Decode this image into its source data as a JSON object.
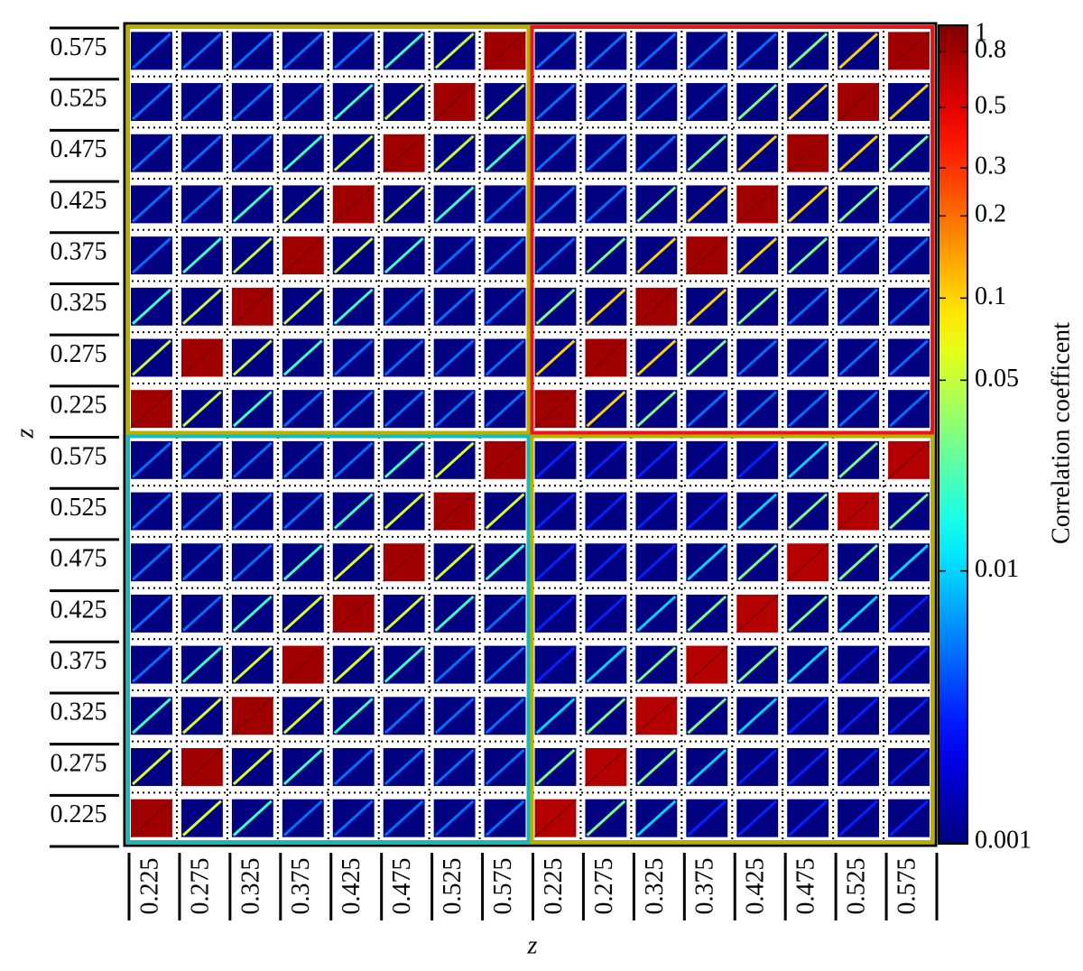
{
  "chart_data": {
    "type": "heatmap",
    "xlabel": "z",
    "ylabel": "z",
    "colorbar_label": "Correlation  coefficent",
    "categories": [
      "0.225",
      "0.275",
      "0.325",
      "0.375",
      "0.425",
      "0.475",
      "0.525",
      "0.575",
      "0.225",
      "0.275",
      "0.325",
      "0.375",
      "0.425",
      "0.475",
      "0.525",
      "0.575"
    ],
    "y_categories": [
      "0.225",
      "0.275",
      "0.325",
      "0.375",
      "0.425",
      "0.475",
      "0.525",
      "0.575",
      "0.225",
      "0.275",
      "0.325",
      "0.375",
      "0.425",
      "0.475",
      "0.525",
      "0.575"
    ],
    "colormap": "jet",
    "color_log_scale": true,
    "clim": [
      0.001,
      1
    ],
    "cticks": [
      0.001,
      0.01,
      0.05,
      0.1,
      0.2,
      0.3,
      0.5,
      0.8,
      1
    ],
    "frame_colors": [
      "#b8b000",
      "#e8161b",
      "#1bb8b8",
      "#b8b000"
    ],
    "values": [
      [
        0.8,
        0.06,
        0.02,
        0.005,
        0.005,
        0.005,
        0.005,
        0.005,
        0.7,
        0.03,
        0.01,
        0.003,
        0.003,
        0.003,
        0.003,
        0.003
      ],
      [
        0.06,
        0.8,
        0.06,
        0.02,
        0.005,
        0.005,
        0.005,
        0.005,
        0.03,
        0.7,
        0.03,
        0.01,
        0.003,
        0.003,
        0.003,
        0.003
      ],
      [
        0.02,
        0.06,
        0.8,
        0.06,
        0.02,
        0.005,
        0.005,
        0.005,
        0.01,
        0.03,
        0.7,
        0.03,
        0.01,
        0.003,
        0.003,
        0.003
      ],
      [
        0.005,
        0.02,
        0.06,
        0.8,
        0.06,
        0.02,
        0.005,
        0.005,
        0.003,
        0.01,
        0.03,
        0.7,
        0.03,
        0.01,
        0.003,
        0.003
      ],
      [
        0.005,
        0.005,
        0.02,
        0.06,
        0.8,
        0.06,
        0.02,
        0.005,
        0.003,
        0.003,
        0.01,
        0.03,
        0.7,
        0.03,
        0.01,
        0.003
      ],
      [
        0.005,
        0.005,
        0.005,
        0.02,
        0.06,
        0.8,
        0.06,
        0.02,
        0.003,
        0.003,
        0.003,
        0.01,
        0.03,
        0.7,
        0.03,
        0.01
      ],
      [
        0.005,
        0.005,
        0.005,
        0.005,
        0.02,
        0.06,
        0.8,
        0.06,
        0.003,
        0.003,
        0.003,
        0.003,
        0.01,
        0.03,
        0.7,
        0.03
      ],
      [
        0.005,
        0.005,
        0.005,
        0.005,
        0.005,
        0.02,
        0.06,
        0.8,
        0.003,
        0.003,
        0.003,
        0.003,
        0.003,
        0.01,
        0.03,
        0.7
      ],
      [
        0.8,
        0.05,
        0.02,
        0.005,
        0.005,
        0.005,
        0.005,
        0.005,
        0.8,
        0.1,
        0.03,
        0.005,
        0.005,
        0.005,
        0.005,
        0.005
      ],
      [
        0.05,
        0.8,
        0.05,
        0.02,
        0.005,
        0.005,
        0.005,
        0.005,
        0.1,
        0.8,
        0.1,
        0.03,
        0.005,
        0.005,
        0.005,
        0.005
      ],
      [
        0.02,
        0.05,
        0.8,
        0.05,
        0.02,
        0.005,
        0.005,
        0.005,
        0.03,
        0.1,
        0.8,
        0.1,
        0.03,
        0.005,
        0.005,
        0.005
      ],
      [
        0.005,
        0.02,
        0.05,
        0.8,
        0.05,
        0.02,
        0.005,
        0.005,
        0.005,
        0.03,
        0.1,
        0.8,
        0.1,
        0.03,
        0.005,
        0.005
      ],
      [
        0.005,
        0.005,
        0.02,
        0.05,
        0.8,
        0.05,
        0.02,
        0.005,
        0.005,
        0.005,
        0.03,
        0.1,
        0.8,
        0.1,
        0.03,
        0.005
      ],
      [
        0.005,
        0.005,
        0.005,
        0.02,
        0.05,
        0.8,
        0.05,
        0.02,
        0.005,
        0.005,
        0.005,
        0.03,
        0.1,
        0.8,
        0.1,
        0.03
      ],
      [
        0.005,
        0.005,
        0.005,
        0.005,
        0.02,
        0.05,
        0.8,
        0.05,
        0.005,
        0.005,
        0.005,
        0.005,
        0.03,
        0.1,
        0.8,
        0.1
      ],
      [
        0.005,
        0.005,
        0.005,
        0.005,
        0.005,
        0.02,
        0.05,
        0.8,
        0.005,
        0.005,
        0.005,
        0.005,
        0.005,
        0.03,
        0.1,
        0.8
      ]
    ]
  }
}
